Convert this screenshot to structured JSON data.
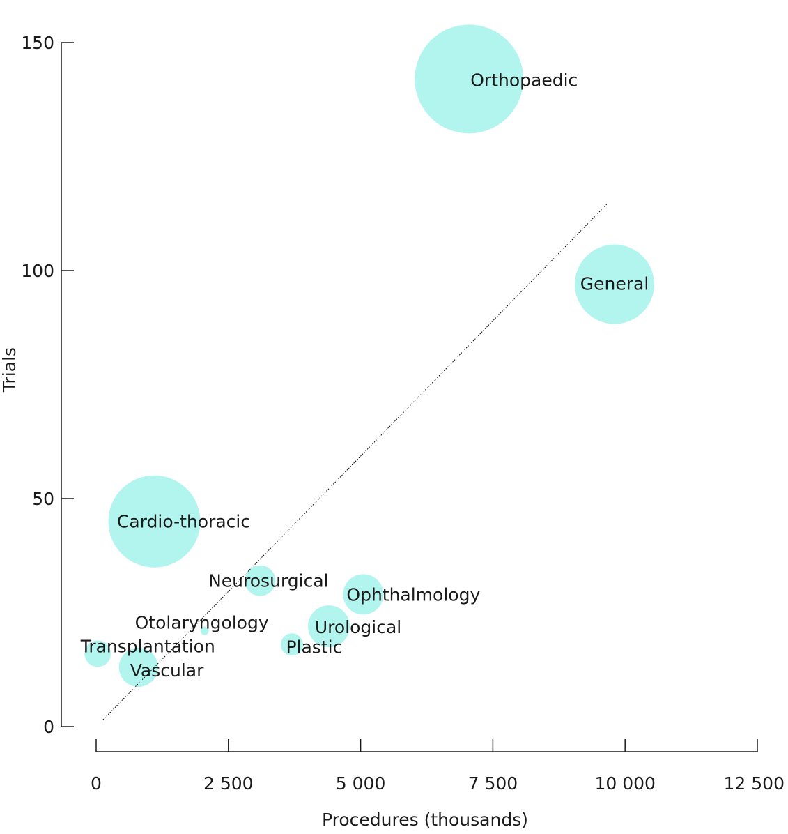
{
  "chart_data": {
    "type": "scatter",
    "title": "",
    "xlabel": "Procedures (thousands)",
    "ylabel": "Trials",
    "xlim": [
      0,
      12500
    ],
    "ylim": [
      0,
      150
    ],
    "x_ticks": [
      {
        "value": 0,
        "label": "0"
      },
      {
        "value": 2500,
        "label": "2 500"
      },
      {
        "value": 5000,
        "label": "5 000"
      },
      {
        "value": 7500,
        "label": "7 500"
      },
      {
        "value": 10000,
        "label": "10 000"
      },
      {
        "value": 12500,
        "label": "12 500"
      }
    ],
    "y_ticks": [
      {
        "value": 0,
        "label": "0"
      },
      {
        "value": 50,
        "label": "50"
      },
      {
        "value": 100,
        "label": "100"
      },
      {
        "value": 150,
        "label": "150"
      }
    ],
    "grid": false,
    "legend": "none",
    "bubble_color": "#b2f5ee",
    "trend_line": {
      "style": "dotted",
      "color": "#000000",
      "from": [
        130,
        1.5
      ],
      "to": [
        9650,
        114.5
      ]
    },
    "points": [
      {
        "name": "Orthopaedic",
        "x": 7050,
        "y": 142,
        "size": 78
      },
      {
        "name": "General",
        "x": 9800,
        "y": 97,
        "size": 57
      },
      {
        "name": "Cardio-thoracic",
        "x": 1100,
        "y": 45,
        "size": 66
      },
      {
        "name": "Neurosurgical",
        "x": 3100,
        "y": 32,
        "size": 22
      },
      {
        "name": "Ophthalmology",
        "x": 5050,
        "y": 29,
        "size": 29
      },
      {
        "name": "Urological",
        "x": 4400,
        "y": 22,
        "size": 30
      },
      {
        "name": "Otolaryngology",
        "x": 2050,
        "y": 21,
        "size": 6
      },
      {
        "name": "Plastic",
        "x": 3700,
        "y": 18,
        "size": 16
      },
      {
        "name": "Transplantation",
        "x": 30,
        "y": 16,
        "size": 19
      },
      {
        "name": "Vascular",
        "x": 800,
        "y": 13,
        "size": 28
      }
    ]
  }
}
